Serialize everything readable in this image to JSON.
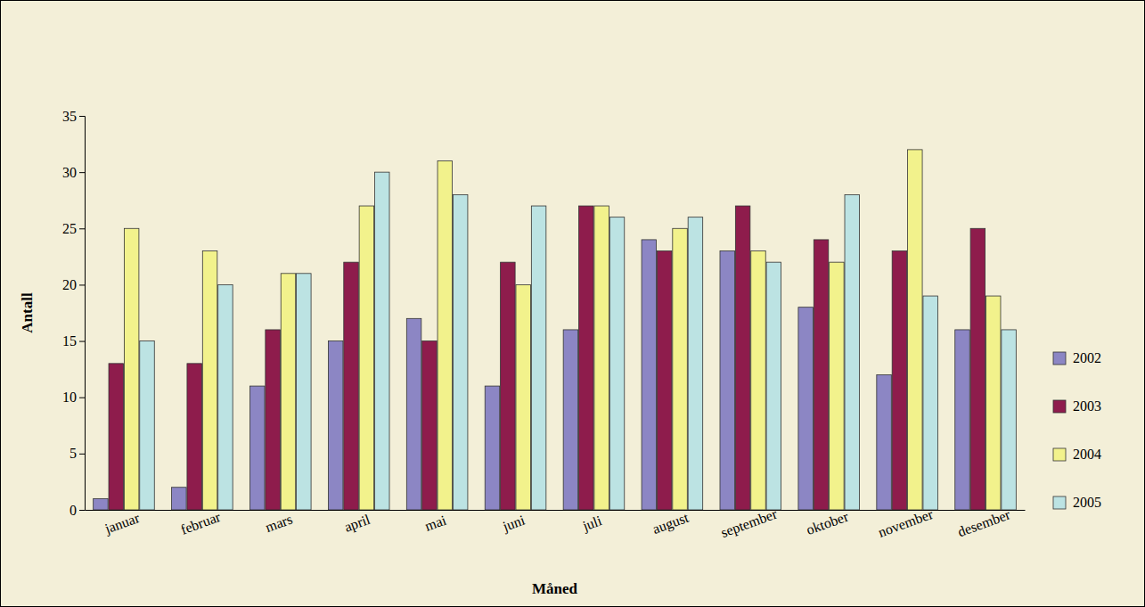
{
  "chart_data": {
    "type": "bar",
    "x_label": "Måned",
    "y_label": "Antall",
    "categories": [
      "januar",
      "februar",
      "mars",
      "april",
      "mai",
      "juni",
      "juli",
      "august",
      "september",
      "oktober",
      "november",
      "desember"
    ],
    "series": [
      {
        "name": "2002",
        "color": "#8c86c4",
        "values": [
          1,
          2,
          11,
          15,
          17,
          11,
          16,
          24,
          23,
          18,
          12,
          16
        ]
      },
      {
        "name": "2003",
        "color": "#8e1c4c",
        "values": [
          13,
          13,
          16,
          22,
          15,
          22,
          27,
          23,
          27,
          24,
          23,
          25
        ]
      },
      {
        "name": "2004",
        "color": "#f2f28c",
        "values": [
          25,
          23,
          21,
          27,
          31,
          20,
          27,
          25,
          23,
          22,
          32,
          19
        ]
      },
      {
        "name": "2005",
        "color": "#bce3e3",
        "values": [
          15,
          20,
          21,
          30,
          28,
          27,
          26,
          26,
          22,
          28,
          19,
          16
        ]
      }
    ],
    "ylim": [
      0,
      35
    ],
    "yticks": [
      0,
      5,
      10,
      15,
      20,
      25,
      30,
      35
    ],
    "grid": false,
    "legend": "right"
  }
}
